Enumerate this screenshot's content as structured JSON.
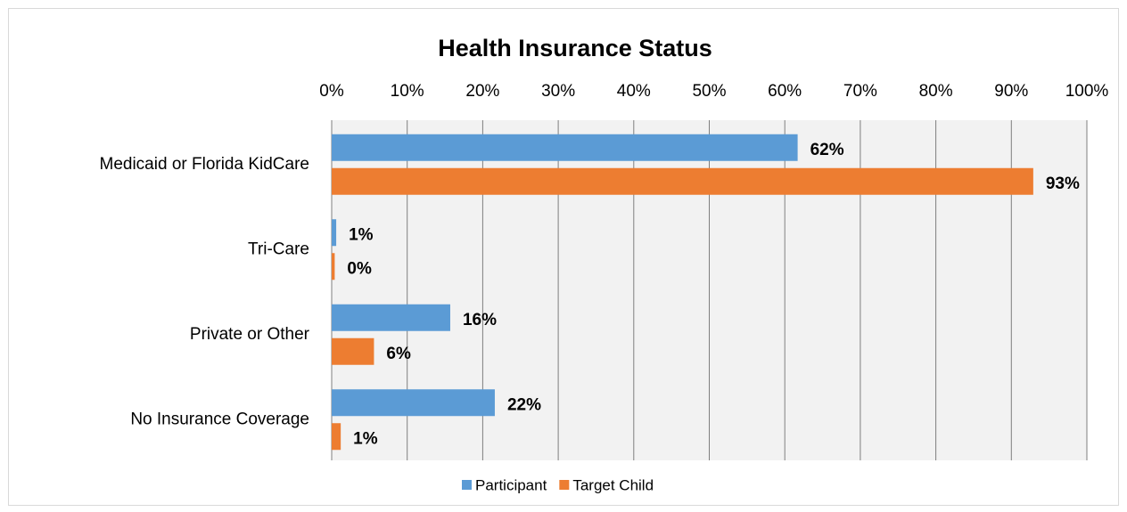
{
  "chart_data": {
    "type": "bar",
    "orientation": "horizontal",
    "title": "Health Insurance Status",
    "categories": [
      "Medicaid or Florida KidCare",
      "Tri-Care",
      "Private or Other",
      "No Insurance Coverage"
    ],
    "series": [
      {
        "name": "Participant",
        "color": "#5b9bd5",
        "values": [
          61.7,
          0.6,
          15.7,
          21.6
        ],
        "value_labels": [
          "62%",
          "1%",
          "16%",
          "22%"
        ]
      },
      {
        "name": "Target Child",
        "color": "#ed7d31",
        "values": [
          92.9,
          0.4,
          5.6,
          1.2
        ],
        "value_labels": [
          "93%",
          "0%",
          "6%",
          "1%"
        ]
      }
    ],
    "xlim": [
      0,
      100
    ],
    "xticks": [
      {
        "value": 0,
        "label": "0%"
      },
      {
        "value": 10,
        "label": "10%"
      },
      {
        "value": 20,
        "label": "20%"
      },
      {
        "value": 30,
        "label": "30%"
      },
      {
        "value": 40,
        "label": "40%"
      },
      {
        "value": 50,
        "label": "50%"
      },
      {
        "value": 60,
        "label": "60%"
      },
      {
        "value": 70,
        "label": "70%"
      },
      {
        "value": 80,
        "label": "80%"
      },
      {
        "value": 90,
        "label": "90%"
      },
      {
        "value": 100,
        "label": "100%"
      }
    ],
    "grid": true,
    "legend": "bottom"
  }
}
